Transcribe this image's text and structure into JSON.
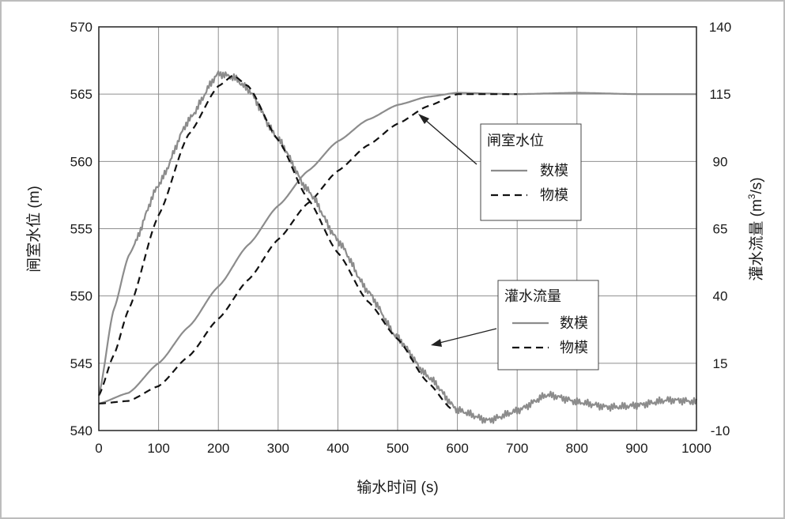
{
  "chart_data": {
    "type": "line",
    "xlabel": "输水时间 (s)",
    "ylabel_left": "闸室水位 (m)",
    "ylabel_right_prefix": "灌水流量 (m",
    "ylabel_right_sup": "3",
    "ylabel_right_suffix": "/s)",
    "xlim": [
      0,
      1000
    ],
    "ylim_left": [
      540,
      570
    ],
    "ylim_right": [
      -10,
      140
    ],
    "x_ticks": [
      "0",
      "100",
      "200",
      "300",
      "400",
      "500",
      "600",
      "700",
      "800",
      "900",
      "1000"
    ],
    "y_left_ticks": [
      "540",
      "545",
      "550",
      "555",
      "560",
      "565",
      "570"
    ],
    "y_right_ticks": [
      "-10",
      "15",
      "40",
      "65",
      "90",
      "115",
      "140"
    ],
    "grid": true,
    "legends": [
      {
        "title": "闸室水位",
        "entries": [
          {
            "label": "数模",
            "style": "solid"
          },
          {
            "label": "物模",
            "style": "dashed"
          }
        ]
      },
      {
        "title": "灌水流量",
        "entries": [
          {
            "label": "数模",
            "style": "solid"
          },
          {
            "label": "物模",
            "style": "dashed"
          }
        ]
      }
    ],
    "series": [
      {
        "group": "闸室水位",
        "name": "数模",
        "axis": "left",
        "style": "solid",
        "color": "#8c8c8c",
        "x": [
          0,
          50,
          100,
          150,
          200,
          250,
          300,
          350,
          400,
          450,
          500,
          550,
          600,
          700,
          800,
          900,
          1000
        ],
        "y": [
          542.0,
          542.8,
          545.0,
          547.7,
          550.7,
          553.8,
          556.7,
          559.3,
          561.5,
          563.1,
          564.2,
          564.8,
          565.1,
          565.0,
          565.1,
          565.0,
          565.0
        ]
      },
      {
        "group": "闸室水位",
        "name": "物模",
        "axis": "left",
        "style": "dashed",
        "color": "#111111",
        "x": [
          0,
          50,
          100,
          150,
          200,
          250,
          300,
          350,
          400,
          450,
          500,
          550,
          600,
          650,
          700
        ],
        "y": [
          542.0,
          542.2,
          543.3,
          545.5,
          548.3,
          551.2,
          554.2,
          556.9,
          559.3,
          561.2,
          562.8,
          564.1,
          565.0,
          565.0,
          565.0
        ]
      },
      {
        "group": "灌水流量",
        "name": "数模",
        "axis": "right",
        "style": "solid",
        "color": "#8c8c8c",
        "x": [
          0,
          25,
          50,
          100,
          150,
          200,
          225,
          250,
          300,
          350,
          400,
          450,
          500,
          550,
          600,
          650,
          700,
          750,
          800,
          850,
          900,
          950,
          1000
        ],
        "y": [
          3,
          35,
          55,
          82,
          105,
          122,
          121,
          117,
          99,
          79,
          60,
          42,
          25,
          10,
          -3,
          -6,
          -2,
          3,
          0,
          -1,
          0,
          1,
          0
        ]
      },
      {
        "group": "灌水流量",
        "name": "物模",
        "axis": "right",
        "style": "dashed",
        "color": "#111111",
        "x": [
          0,
          25,
          50,
          100,
          150,
          200,
          225,
          250,
          300,
          350,
          400,
          450,
          500,
          550,
          590
        ],
        "y": [
          3,
          18,
          35,
          70,
          100,
          118,
          122,
          118,
          98,
          76,
          56,
          38,
          24,
          8,
          -2
        ]
      }
    ]
  }
}
